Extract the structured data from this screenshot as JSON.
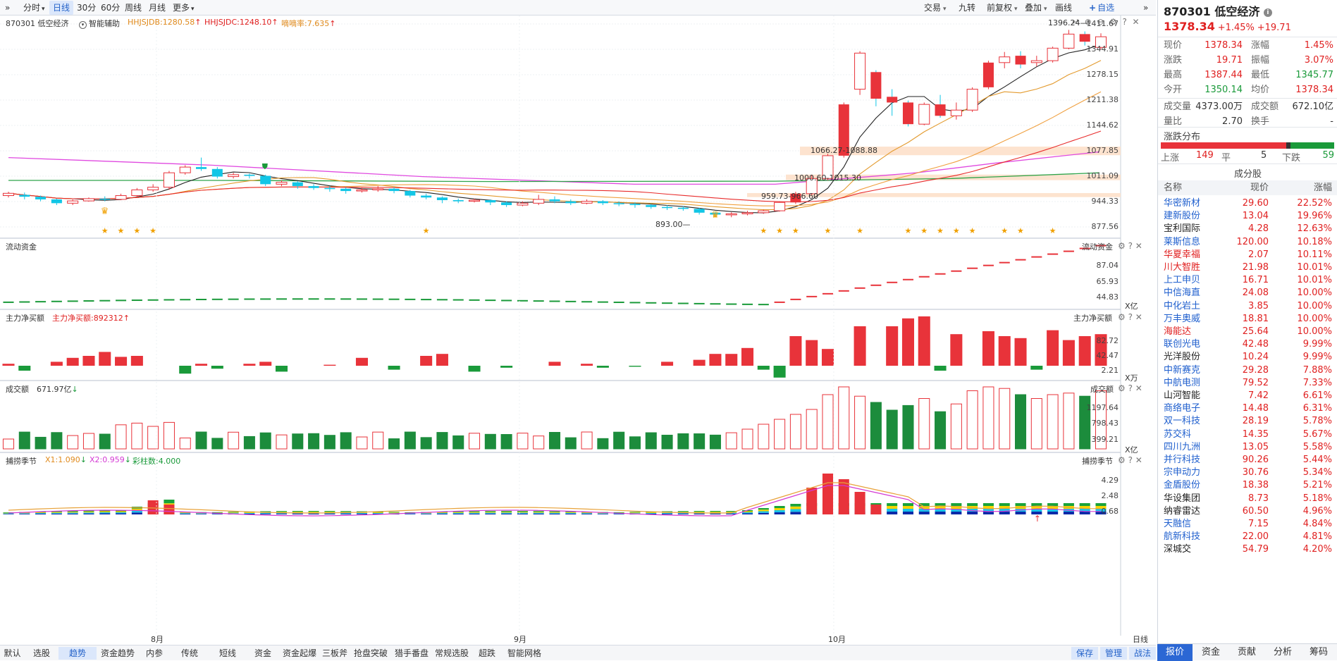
{
  "toolbar": {
    "left": [
      "分时",
      "日线",
      "30分",
      "60分",
      "周线",
      "月线",
      "更多"
    ],
    "active": "日线",
    "right": [
      "交易",
      "九转",
      "前复权",
      "叠加",
      "画线",
      "自选"
    ]
  },
  "main_panel": {
    "title": "870301 低空经济",
    "assist": "智能辅助",
    "ind1": "HHJSJDB:1280.58",
    "ind2": "HHJSJDC:1248.10",
    "ind3": "嘀嘀率:7.635",
    "y_labels": [
      "1411.67",
      "1344.91",
      "1278.15",
      "1211.38",
      "1144.62",
      "1077.85",
      "1011.09",
      "944.33",
      "877.56"
    ],
    "annotations": [
      "1396.24",
      "1066.27-1088.88",
      "1000.60-1015.30",
      "959.73-966.60",
      "893.00"
    ]
  },
  "flow_panel": {
    "title": "流动资金",
    "right_title": "流动资金",
    "y_labels": [
      "87.04",
      "65.93",
      "44.83"
    ],
    "unit": "X亿"
  },
  "net_panel": {
    "title": "主力净买额",
    "value": "主力净买额:892312",
    "right_title": "主力净买额",
    "y_labels": [
      "82.72",
      "42.47",
      "2.21"
    ],
    "unit": "X万"
  },
  "vol_panel": {
    "title": "成交额",
    "value": "671.97亿",
    "right_title": "成交额",
    "y_labels": [
      "1197.64",
      "798.43",
      "399.21"
    ],
    "unit": "X亿"
  },
  "season_panel": {
    "title": "捕捞季节",
    "x1": "X1:1.090",
    "x2": "X2:0.959",
    "bars": "彩柱数:4.000",
    "right_title": "捕捞季节",
    "y_labels": [
      "4.29",
      "2.48",
      "0.68"
    ]
  },
  "x_months": [
    "8月",
    "9月",
    "10月"
  ],
  "x_right_label": "日线",
  "bottom_tabs": [
    "默认",
    "选股",
    "趋势",
    "资金趋势",
    "内参",
    "传统",
    "短线",
    "资金",
    "资金起爆",
    "三板斧",
    "抢盘突破",
    "猎手番盘",
    "常规选股",
    "超跌",
    "智能网格"
  ],
  "bottom_active": "趋势",
  "bottom_right_btns": [
    "保存",
    "管理",
    "战法"
  ],
  "quote": {
    "code_name": "870301 低空经济",
    "price": "1378.34",
    "chg_pct": "+1.45%",
    "chg": "+19.71",
    "rows": [
      [
        "现价",
        "1378.34",
        "涨幅",
        "1.45%"
      ],
      [
        "涨跌",
        "19.71",
        "振幅",
        "3.07%"
      ],
      [
        "最高",
        "1387.44",
        "最低",
        "1345.77"
      ],
      [
        "今开",
        "1350.14",
        "均价",
        "1378.34"
      ],
      [
        "成交量",
        "4373.00万",
        "成交额",
        "672.10亿"
      ],
      [
        "量比",
        "2.70",
        "换手",
        "-"
      ]
    ]
  },
  "distribution": {
    "title": "涨跌分布",
    "up_label": "上涨",
    "up": "149",
    "flat_label": "平",
    "flat": "5",
    "down_label": "下跌",
    "down": "59"
  },
  "components": {
    "title": "成分股",
    "headers": [
      "名称",
      "现价",
      "涨幅"
    ],
    "rows": [
      [
        "华密新材",
        "29.60",
        "22.52%"
      ],
      [
        "建新股份",
        "13.04",
        "19.96%"
      ],
      [
        "宝利国际",
        "4.28",
        "12.63%"
      ],
      [
        "莱斯信息",
        "120.00",
        "10.18%"
      ],
      [
        "华夏幸福",
        "2.07",
        "10.11%"
      ],
      [
        "川大智胜",
        "21.98",
        "10.01%"
      ],
      [
        "上工申贝",
        "16.71",
        "10.01%"
      ],
      [
        "中信海直",
        "24.08",
        "10.00%"
      ],
      [
        "中化岩土",
        "3.85",
        "10.00%"
      ],
      [
        "万丰奥威",
        "18.81",
        "10.00%"
      ],
      [
        "海能达",
        "25.64",
        "10.00%"
      ],
      [
        "联创光电",
        "42.48",
        "9.99%"
      ],
      [
        "光洋股份",
        "10.24",
        "9.99%"
      ],
      [
        "中新赛克",
        "29.28",
        "7.88%"
      ],
      [
        "中航电测",
        "79.52",
        "7.33%"
      ],
      [
        "山河智能",
        "7.42",
        "6.61%"
      ],
      [
        "商络电子",
        "14.48",
        "6.31%"
      ],
      [
        "双一科技",
        "28.19",
        "5.78%"
      ],
      [
        "苏交科",
        "14.35",
        "5.67%"
      ],
      [
        "四川九洲",
        "13.05",
        "5.58%"
      ],
      [
        "并行科技",
        "90.26",
        "5.44%"
      ],
      [
        "宗申动力",
        "30.76",
        "5.34%"
      ],
      [
        "金盾股份",
        "18.38",
        "5.21%"
      ],
      [
        "华设集团",
        "8.73",
        "5.18%"
      ],
      [
        "纳睿雷达",
        "60.50",
        "4.96%"
      ],
      [
        "天融信",
        "7.15",
        "4.84%"
      ],
      [
        "航新科技",
        "22.00",
        "4.81%"
      ],
      [
        "深城交",
        "54.79",
        "4.20%"
      ]
    ]
  },
  "right_tabs": [
    "报价",
    "资金",
    "贡献",
    "分析",
    "筹码"
  ],
  "right_active": "报价",
  "chart_data": {
    "type": "candlestick",
    "y_range": [
      877.56,
      1411.67
    ],
    "candles": [
      [
        960,
        966,
        955,
        970
      ],
      [
        962,
        957,
        950,
        968
      ],
      [
        957,
        950,
        945,
        960
      ],
      [
        950,
        940,
        935,
        952
      ],
      [
        940,
        946,
        935,
        950
      ],
      [
        946,
        952,
        944,
        955
      ],
      [
        952,
        950,
        945,
        958
      ],
      [
        950,
        960,
        948,
        965
      ],
      [
        960,
        975,
        956,
        980
      ],
      [
        975,
        982,
        970,
        990
      ],
      [
        982,
        1020,
        975,
        1025
      ],
      [
        1020,
        1035,
        1015,
        1040
      ],
      [
        1035,
        1030,
        1025,
        1060
      ],
      [
        1030,
        1010,
        1005,
        1035
      ],
      [
        1010,
        1015,
        1005,
        1020
      ],
      [
        1015,
        1012,
        1005,
        1018
      ],
      [
        1012,
        990,
        985,
        1015
      ],
      [
        990,
        995,
        985,
        1000
      ],
      [
        995,
        985,
        978,
        998
      ],
      [
        985,
        980,
        975,
        990
      ],
      [
        980,
        978,
        970,
        985
      ],
      [
        978,
        972,
        965,
        982
      ],
      [
        972,
        975,
        968,
        980
      ],
      [
        975,
        978,
        970,
        985
      ],
      [
        978,
        972,
        966,
        982
      ],
      [
        972,
        960,
        955,
        975
      ],
      [
        960,
        955,
        950,
        965
      ],
      [
        955,
        948,
        940,
        958
      ],
      [
        948,
        945,
        940,
        952
      ],
      [
        945,
        948,
        942,
        952
      ],
      [
        948,
        942,
        935,
        950
      ],
      [
        942,
        935,
        930,
        945
      ],
      [
        935,
        940,
        932,
        945
      ],
      [
        940,
        950,
        935,
        962
      ],
      [
        950,
        945,
        940,
        958
      ],
      [
        945,
        940,
        935,
        950
      ],
      [
        940,
        945,
        937,
        950
      ],
      [
        945,
        940,
        935,
        948
      ],
      [
        940,
        938,
        932,
        945
      ],
      [
        938,
        935,
        928,
        942
      ],
      [
        935,
        930,
        925,
        938
      ],
      [
        930,
        928,
        922,
        935
      ],
      [
        928,
        925,
        920,
        932
      ],
      [
        925,
        915,
        910,
        928
      ],
      [
        915,
        910,
        905,
        918
      ],
      [
        910,
        912,
        903,
        916
      ],
      [
        912,
        915,
        908,
        920
      ],
      [
        915,
        920,
        912,
        923
      ],
      [
        920,
        942,
        918,
        945
      ],
      [
        942,
        965,
        938,
        970
      ],
      [
        965,
        1005,
        960,
        1015
      ],
      [
        1005,
        1065,
        1000,
        1070
      ],
      [
        1065,
        1200,
        1060,
        1205
      ],
      [
        1240,
        1335,
        1225,
        1340
      ],
      [
        1285,
        1215,
        1195,
        1290
      ],
      [
        1220,
        1205,
        1170,
        1240
      ],
      [
        1205,
        1148,
        1142,
        1210
      ],
      [
        1148,
        1200,
        1145,
        1205
      ],
      [
        1200,
        1170,
        1165,
        1225
      ],
      [
        1170,
        1185,
        1160,
        1205
      ],
      [
        1185,
        1240,
        1180,
        1245
      ],
      [
        1245,
        1310,
        1240,
        1315
      ],
      [
        1310,
        1325,
        1295,
        1338
      ],
      [
        1328,
        1305,
        1295,
        1340
      ],
      [
        1310,
        1315,
        1300,
        1328
      ],
      [
        1315,
        1348,
        1310,
        1352
      ],
      [
        1348,
        1385,
        1345,
        1396
      ],
      [
        1385,
        1365,
        1355,
        1392
      ],
      [
        1350,
        1378,
        1345,
        1387
      ]
    ],
    "season_x1": "1.090",
    "season_x2": "0.959"
  }
}
